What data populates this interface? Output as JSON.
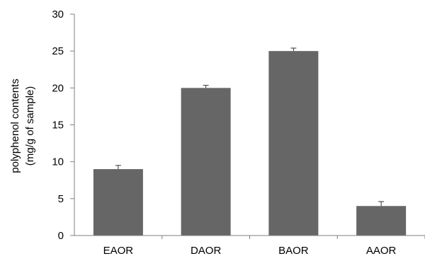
{
  "chart_data": {
    "type": "bar",
    "categories": [
      "EAOR",
      "DAOR",
      "BAOR",
      "AAOR"
    ],
    "values": [
      9.0,
      20.0,
      25.0,
      4.0
    ],
    "errors": [
      0.5,
      0.35,
      0.4,
      0.6
    ],
    "ylabel_line1": "polyphenol contents",
    "ylabel_line2": "(mg/g of sample)",
    "ylim": [
      0,
      30
    ],
    "yticks": [
      0,
      5,
      10,
      15,
      20,
      25,
      30
    ],
    "grid": false,
    "legend": "none",
    "bar_color": "#666666",
    "axis_color": "#7f7f7f"
  }
}
